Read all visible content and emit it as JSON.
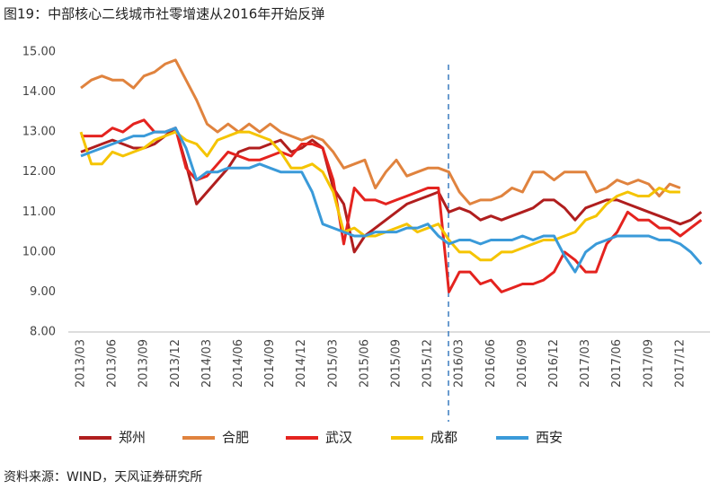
{
  "chart_data": {
    "type": "line",
    "title": "图19：中部核心二线城市社零增速从2016年开始反弹",
    "source": "资料来源：WIND，天风证券研究所",
    "categories": [
      "2013/03",
      null,
      null,
      "2013/06",
      null,
      null,
      "2013/09",
      null,
      null,
      "2013/12",
      null,
      null,
      "2014/03",
      null,
      null,
      "2014/06",
      null,
      null,
      "2014/09",
      null,
      null,
      "2014/12",
      null,
      null,
      "2015/03",
      null,
      null,
      "2015/06",
      null,
      null,
      "2015/09",
      null,
      null,
      "2015/12",
      null,
      null,
      "2016/03",
      null,
      null,
      "2016/06",
      null,
      null,
      "2016/09",
      null,
      null,
      "2016/12",
      null,
      null,
      "2017/03",
      null,
      null,
      "2017/06",
      null,
      null,
      "2017/09",
      null,
      null,
      "2017/12",
      null,
      null
    ],
    "ylim": [
      8,
      15
    ],
    "yticks": [
      {
        "value": 8,
        "label": "8.00"
      },
      {
        "value": 9,
        "label": "9.00"
      },
      {
        "value": 10,
        "label": "10.00"
      },
      {
        "value": 11,
        "label": "11.00"
      },
      {
        "value": 12,
        "label": "12.00"
      },
      {
        "value": 13,
        "label": "13.00"
      },
      {
        "value": 14,
        "label": "14.00"
      },
      {
        "value": 15,
        "label": "15.00"
      }
    ],
    "grid": false,
    "series": [
      {
        "name": "郑州",
        "color": "#b01e1e",
        "values": [
          12.5,
          12.6,
          12.7,
          12.8,
          12.7,
          12.6,
          12.6,
          12.7,
          12.9,
          13.1,
          12.2,
          11.2,
          11.5,
          11.8,
          12.1,
          12.5,
          12.6,
          12.6,
          12.7,
          12.8,
          12.5,
          12.6,
          12.8,
          12.6,
          11.6,
          11.2,
          10.0,
          10.4,
          10.6,
          10.8,
          11.0,
          11.2,
          11.3,
          11.4,
          11.5,
          11.0,
          11.1,
          11.0,
          10.8,
          10.9,
          10.8,
          10.9,
          11.0,
          11.1,
          11.3,
          11.3,
          11.1,
          10.8,
          11.1,
          11.2,
          11.3,
          11.3,
          11.2,
          11.1,
          11.0,
          10.9,
          10.8,
          10.7,
          10.8,
          11.0
        ]
      },
      {
        "name": "合肥",
        "color": "#e0833e",
        "values": [
          14.1,
          14.3,
          14.4,
          14.3,
          14.3,
          14.1,
          14.4,
          14.5,
          14.7,
          14.8,
          14.3,
          13.8,
          13.2,
          13.0,
          13.2,
          13.0,
          13.2,
          13.0,
          13.2,
          13.0,
          12.9,
          12.8,
          12.9,
          12.8,
          12.5,
          12.1,
          12.2,
          12.3,
          11.6,
          12.0,
          12.3,
          11.9,
          12.0,
          12.1,
          12.1,
          12.0,
          11.5,
          11.2,
          11.3,
          11.3,
          11.4,
          11.6,
          11.5,
          12.0,
          12.0,
          11.8,
          12.0,
          12.0,
          12.0,
          11.5,
          11.6,
          11.8,
          11.7,
          11.8,
          11.7,
          11.4,
          11.7,
          11.6,
          null,
          null
        ]
      },
      {
        "name": "武汉",
        "color": "#e4231f",
        "values": [
          12.9,
          12.9,
          12.9,
          13.1,
          13.0,
          13.2,
          13.3,
          13.0,
          13.0,
          13.1,
          12.1,
          11.8,
          11.9,
          12.2,
          12.5,
          12.4,
          12.3,
          12.3,
          12.4,
          12.5,
          12.4,
          12.7,
          12.7,
          12.6,
          11.8,
          10.2,
          11.6,
          11.3,
          11.3,
          11.2,
          11.3,
          11.4,
          11.5,
          11.6,
          11.6,
          9.0,
          9.5,
          9.5,
          9.2,
          9.3,
          9.0,
          9.1,
          9.2,
          9.2,
          9.3,
          9.5,
          10.0,
          9.8,
          9.5,
          9.5,
          10.2,
          10.5,
          11.0,
          10.8,
          10.8,
          10.6,
          10.6,
          10.4,
          10.6,
          10.8
        ]
      },
      {
        "name": "成都",
        "color": "#f5c400",
        "values": [
          13.0,
          12.2,
          12.2,
          12.5,
          12.4,
          12.5,
          12.6,
          12.8,
          12.9,
          13.0,
          12.8,
          12.7,
          12.4,
          12.8,
          12.9,
          13.0,
          13.0,
          12.9,
          12.8,
          12.5,
          12.1,
          12.1,
          12.2,
          12.0,
          11.5,
          10.5,
          10.6,
          10.4,
          10.4,
          10.5,
          10.6,
          10.7,
          10.5,
          10.6,
          10.7,
          10.3,
          10.0,
          10.0,
          9.8,
          9.8,
          10.0,
          10.0,
          10.1,
          10.2,
          10.3,
          10.3,
          10.4,
          10.5,
          10.8,
          10.9,
          11.2,
          11.4,
          11.5,
          11.4,
          11.4,
          11.6,
          11.5,
          11.5,
          null,
          null
        ]
      },
      {
        "name": "西安",
        "color": "#3a9ad9",
        "values": [
          12.4,
          12.5,
          12.6,
          12.7,
          12.8,
          12.9,
          12.9,
          13.0,
          13.0,
          13.1,
          12.6,
          11.8,
          12.0,
          12.0,
          12.1,
          12.1,
          12.1,
          12.2,
          12.1,
          12.0,
          12.0,
          12.0,
          11.5,
          10.7,
          10.6,
          10.5,
          10.4,
          10.4,
          10.5,
          10.5,
          10.5,
          10.6,
          10.6,
          10.7,
          10.4,
          10.2,
          10.3,
          10.3,
          10.2,
          10.3,
          10.3,
          10.3,
          10.4,
          10.3,
          10.4,
          10.4,
          9.9,
          9.5,
          10.0,
          10.2,
          10.3,
          10.4,
          10.4,
          10.4,
          10.4,
          10.3,
          10.3,
          10.2,
          10.0,
          9.7
        ]
      }
    ]
  }
}
